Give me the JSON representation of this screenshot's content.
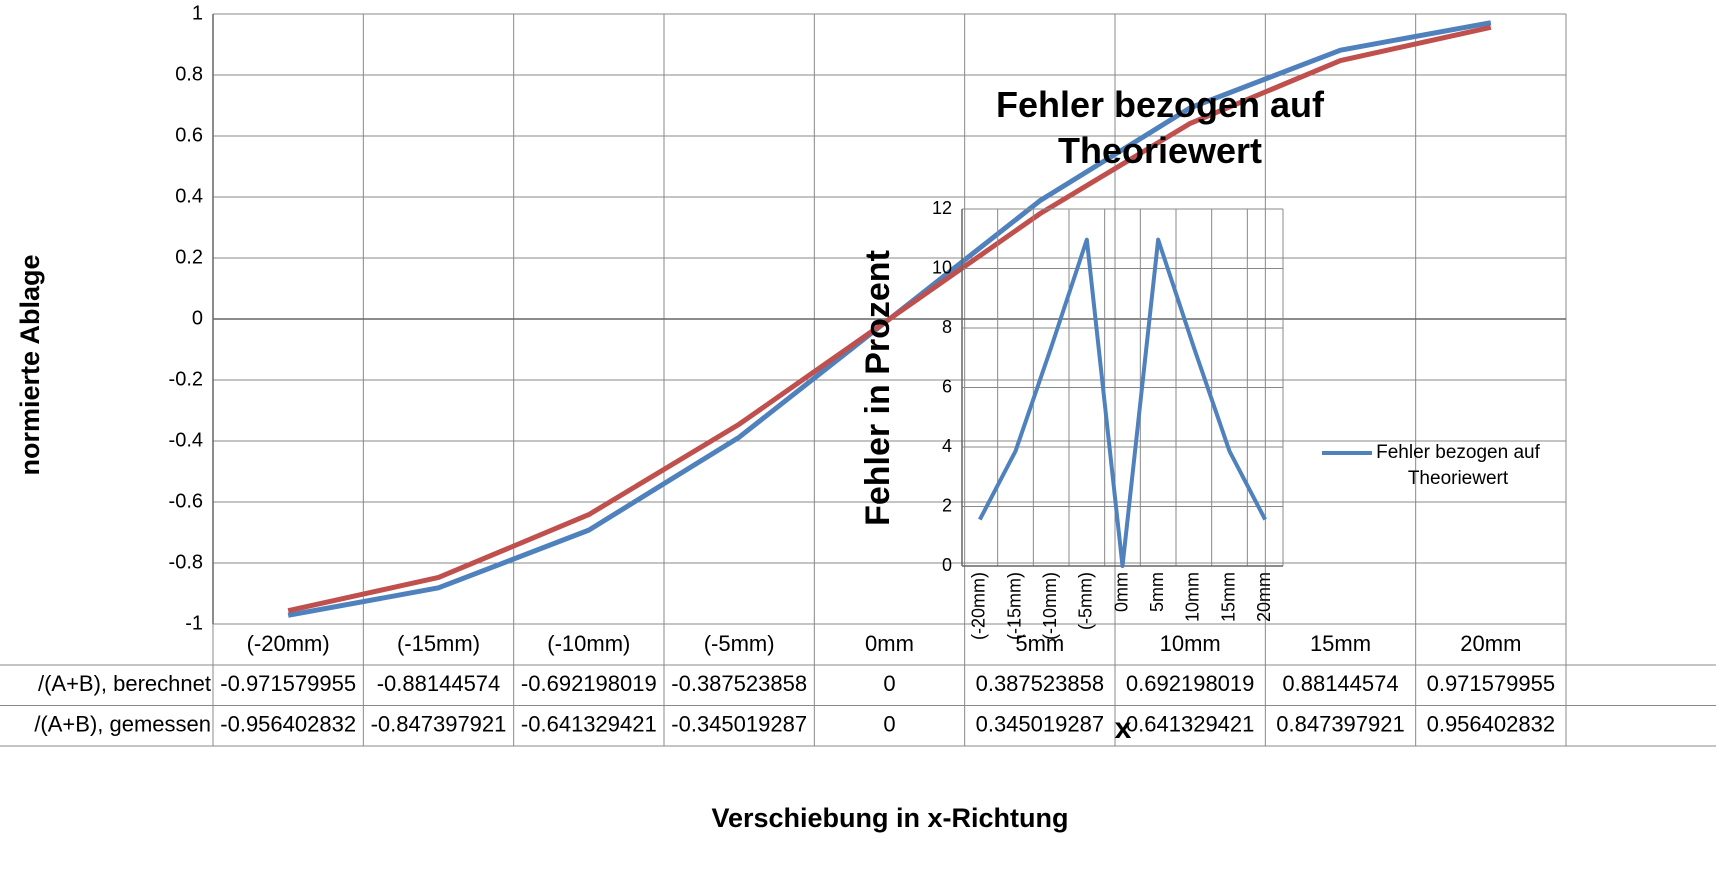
{
  "chart_data": [
    {
      "type": "line",
      "x_label": "Verschiebung in x-Richtung",
      "y_label": "normierte Ablage",
      "categories": [
        "(-20mm)",
        "(-15mm)",
        "(-10mm)",
        "(-5mm)",
        "0mm",
        "5mm",
        "10mm",
        "15mm",
        "20mm"
      ],
      "series": [
        {
          "name": "/(A+B), berechnet",
          "color": "#4f81bd",
          "values": [
            -0.971579955,
            -0.88144574,
            -0.692198019,
            -0.387523858,
            0,
            0.387523858,
            0.692198019,
            0.88144574,
            0.971579955
          ]
        },
        {
          "name": "/(A+B), gemessen",
          "color": "#c0504d",
          "values": [
            -0.956402832,
            -0.847397921,
            -0.641329421,
            -0.345019287,
            0,
            0.345019287,
            0.641329421,
            0.847397921,
            0.956402832
          ]
        }
      ],
      "ylim": [
        -1,
        1
      ],
      "yticks": [
        -1,
        -0.8,
        -0.6,
        -0.4,
        -0.2,
        0,
        0.2,
        0.4,
        0.6,
        0.8,
        1
      ],
      "grid": true,
      "data_table": true
    },
    {
      "type": "line",
      "title": "Fehler bezogen auf Theoriewert",
      "x_label": "x",
      "y_label": "Fehler in Prozent",
      "categories": [
        "(-20mm)",
        "(-15mm)",
        "(-10mm)",
        "(-5mm)",
        "0mm",
        "5mm",
        "10mm",
        "15mm",
        "20mm"
      ],
      "series": [
        {
          "name": "Fehler bezogen auf Theoriewert",
          "color": "#4f81bd",
          "values": [
            1.56,
            3.86,
            7.35,
            10.97,
            0,
            10.97,
            7.35,
            3.86,
            1.56
          ]
        }
      ],
      "ylim": [
        0,
        12
      ],
      "yticks": [
        0,
        2,
        4,
        6,
        8,
        10,
        12
      ],
      "grid": true,
      "legend": "right"
    }
  ]
}
